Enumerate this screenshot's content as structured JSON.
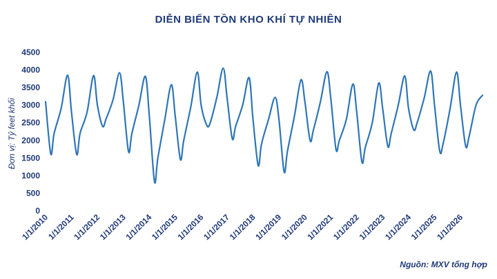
{
  "source_note": "Nguồn: MXV tổng hợp",
  "chart_data": {
    "type": "line",
    "title": "DIỄN BIẾN TỒN KHO KHÍ TỰ NHIÊN",
    "xlabel": "",
    "ylabel": "Đơn vị: Tỷ feet khối",
    "ylim": [
      0,
      4500
    ],
    "yticks": [
      0,
      500,
      1000,
      1500,
      2000,
      2500,
      3000,
      3500,
      4000,
      4500
    ],
    "xticks": [
      "1/1/2010",
      "1/1/2011",
      "1/1/2012",
      "1/1/2013",
      "1/1/2014",
      "1/1/2015",
      "1/1/2016",
      "1/1/2017",
      "1/1/2018",
      "1/1/2019",
      "1/1/2020",
      "1/1/2021",
      "1/1/2022",
      "1/1/2023",
      "1/1/2024",
      "1/1/2025",
      "1/1/2026"
    ],
    "xlim": [
      2010.0,
      2026.85
    ],
    "grid": false,
    "legend": "none",
    "line_color": "#2e75b6",
    "x": [
      2010.0,
      2010.2,
      2010.33,
      2010.6,
      2010.85,
      2011.0,
      2011.2,
      2011.33,
      2011.6,
      2011.85,
      2012.0,
      2012.2,
      2012.33,
      2012.6,
      2012.85,
      2013.0,
      2013.2,
      2013.33,
      2013.6,
      2013.85,
      2014.0,
      2014.2,
      2014.33,
      2014.6,
      2014.85,
      2015.0,
      2015.2,
      2015.33,
      2015.6,
      2015.85,
      2016.0,
      2016.2,
      2016.33,
      2016.6,
      2016.85,
      2017.0,
      2017.2,
      2017.33,
      2017.6,
      2017.85,
      2018.0,
      2018.2,
      2018.33,
      2018.6,
      2018.85,
      2019.0,
      2019.2,
      2019.33,
      2019.6,
      2019.85,
      2020.0,
      2020.2,
      2020.33,
      2020.6,
      2020.85,
      2021.0,
      2021.2,
      2021.33,
      2021.6,
      2021.85,
      2022.0,
      2022.2,
      2022.33,
      2022.6,
      2022.85,
      2023.0,
      2023.2,
      2023.33,
      2023.6,
      2023.85,
      2024.0,
      2024.2,
      2024.33,
      2024.6,
      2024.85,
      2025.0,
      2025.2,
      2025.33,
      2025.6,
      2025.85,
      2026.0,
      2026.2,
      2026.33,
      2026.6,
      2026.85
    ],
    "values": [
      3100,
      1620,
      2200,
      2900,
      3850,
      2800,
      1600,
      2200,
      2800,
      3840,
      3000,
      2400,
      2600,
      3150,
      3920,
      3100,
      1680,
      2200,
      3000,
      3820,
      2700,
      830,
      1500,
      2600,
      3580,
      2700,
      1460,
      2000,
      2950,
      3940,
      3000,
      2460,
      2460,
      3200,
      4050,
      3200,
      2050,
      2400,
      3000,
      3780,
      2600,
      1290,
      1900,
      2600,
      3220,
      2600,
      1110,
      1700,
      2700,
      3720,
      3100,
      2000,
      2300,
      3100,
      3950,
      3200,
      1750,
      2000,
      2600,
      3600,
      2800,
      1390,
      1800,
      2500,
      3630,
      2900,
      1830,
      2200,
      3000,
      3830,
      2900,
      2300,
      2500,
      3200,
      3970,
      3000,
      1700,
      1900,
      2900,
      3940,
      3000,
      1840,
      2100,
      3000,
      3280
    ]
  }
}
